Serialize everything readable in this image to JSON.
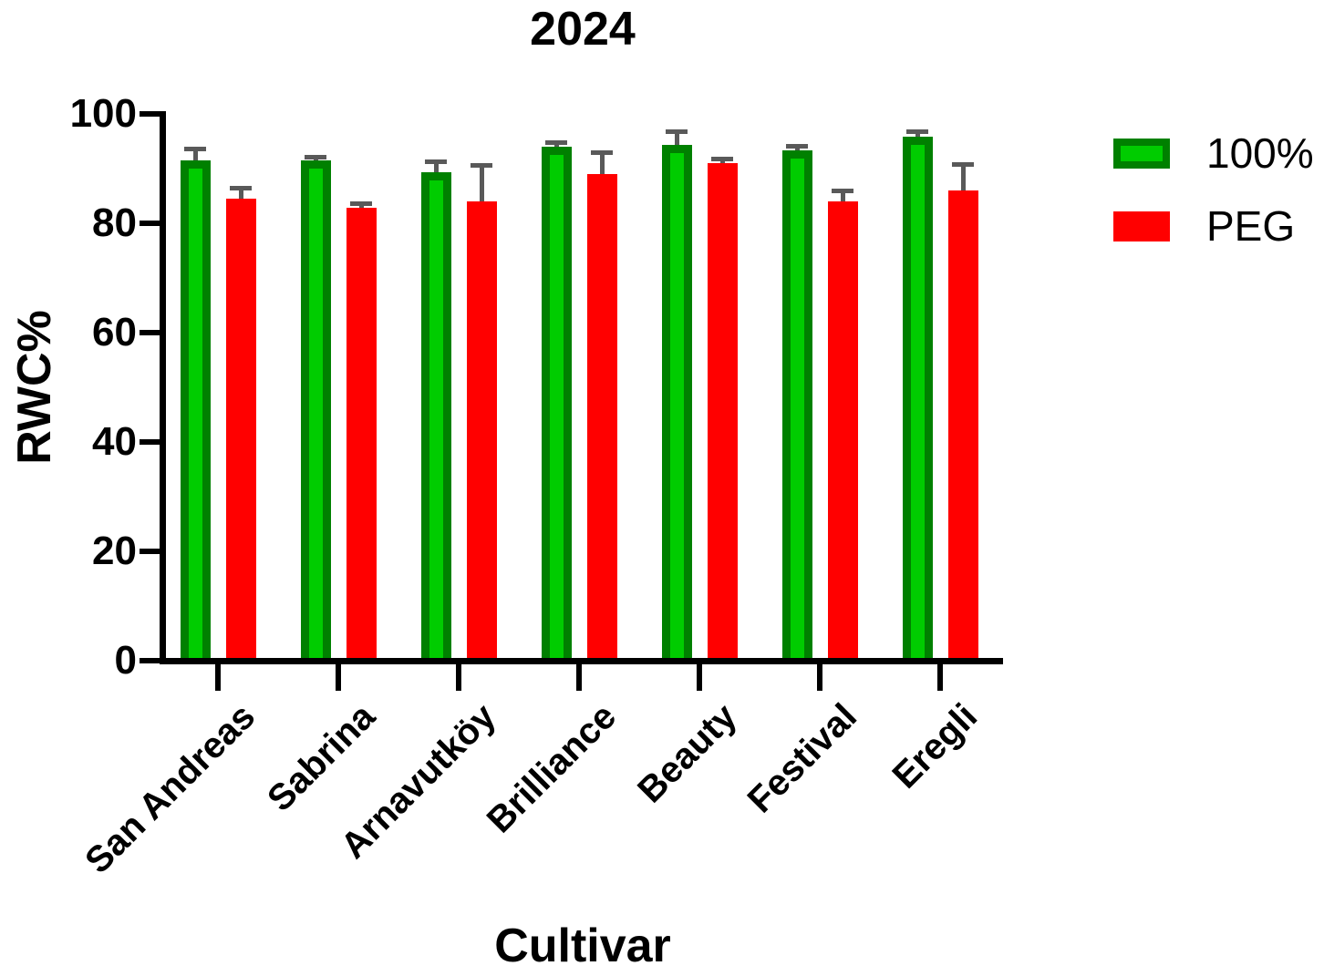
{
  "title": "2024",
  "axes": {
    "y_label": "RWC%",
    "x_label": "Cultivar"
  },
  "legend": {
    "position": "right",
    "items": [
      "100%",
      "PEG"
    ]
  },
  "chart_data": {
    "type": "bar",
    "title": "2024",
    "xlabel": "Cultivar",
    "ylabel": "RWC%",
    "ylim": [
      0,
      100
    ],
    "y_ticks": [
      0,
      20,
      40,
      60,
      80,
      100
    ],
    "grid": false,
    "legend_position": "right",
    "error_bars": "SEM, upper side only",
    "error_color": "#595959",
    "axis_color": "#000000",
    "background_color": "#FFFFFF",
    "categories": [
      "San Andreas",
      "Sabrina",
      "Arnavutköy",
      "Brilliance",
      "Beauty",
      "Festival",
      "Eregli"
    ],
    "series": [
      {
        "name": "100%",
        "fill": "#00CC00",
        "border": "#008000",
        "values": [
          91.5,
          91.5,
          89.3,
          94.0,
          94.4,
          93.4,
          95.8
        ],
        "errors": [
          2.2,
          0.7,
          2.1,
          0.9,
          2.5,
          0.8,
          1.1
        ]
      },
      {
        "name": "PEG",
        "fill": "#FF0000",
        "border": "#FF0000",
        "values": [
          84.5,
          82.9,
          84.0,
          89.0,
          91.0,
          84.0,
          86.0
        ],
        "errors": [
          2.0,
          0.8,
          6.7,
          4.0,
          0.8,
          2.0,
          4.9
        ]
      }
    ]
  }
}
